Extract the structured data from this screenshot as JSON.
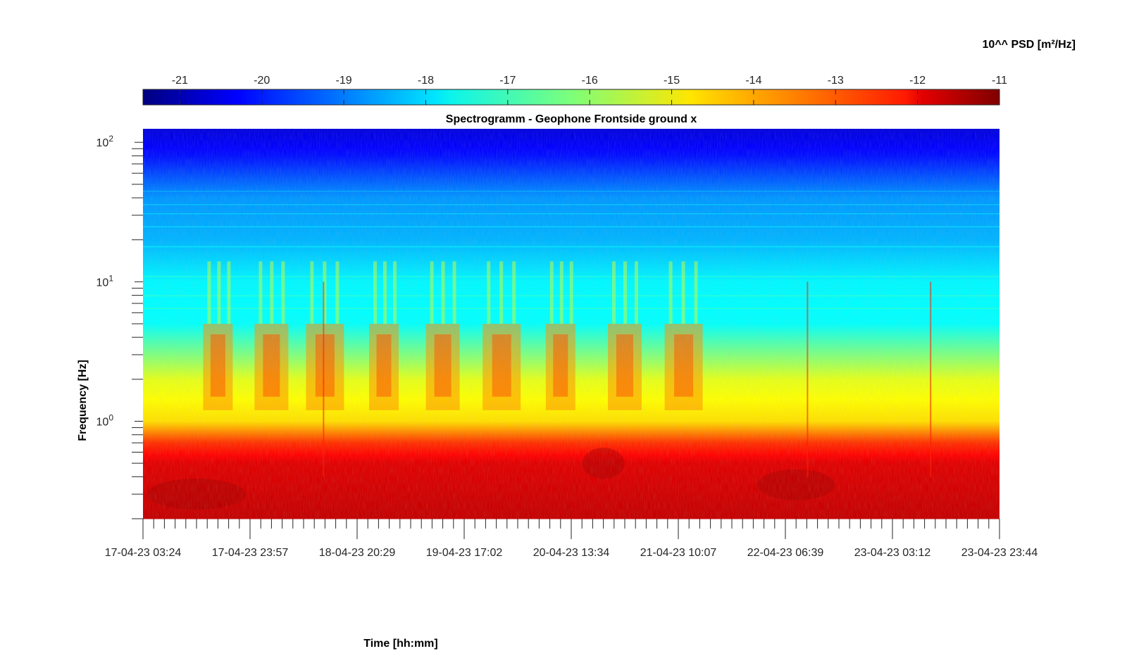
{
  "chart_data": {
    "type": "heatmap",
    "title": "Spectrogramm - Geophone Frontside ground x",
    "xlabel": "Time [hh:mm]",
    "ylabel": "Frequency [Hz]",
    "x_tick_labels": [
      "17-04-23 03:24",
      "17-04-23 23:57",
      "18-04-23 20:29",
      "19-04-23 17:02",
      "20-04-23 13:34",
      "21-04-23 10:07",
      "22-04-23 06:39",
      "23-04-23 03:12",
      "23-04-23 23:44"
    ],
    "y_scale": "log",
    "ylim": [
      0.2,
      125
    ],
    "y_tick_labels": [
      {
        "base": "10",
        "exp": "0",
        "value": 1
      },
      {
        "base": "10",
        "exp": "1",
        "value": 10
      },
      {
        "base": "10",
        "exp": "2",
        "value": 100
      }
    ],
    "colorbar": {
      "label": "10^^ PSD [m²/Hz]",
      "location": "top",
      "range": [
        -21.45,
        -11
      ],
      "ticks": [
        "-21",
        "-20",
        "-19",
        "-18",
        "-17",
        "-16",
        "-15",
        "-14",
        "-13",
        "-12",
        "-11"
      ],
      "colormap": "jet"
    },
    "background_psd_profile": [
      {
        "freq_hz": 0.2,
        "log10_psd": -11.7
      },
      {
        "freq_hz": 0.5,
        "log10_psd": -12.0
      },
      {
        "freq_hz": 0.7,
        "log10_psd": -12.8
      },
      {
        "freq_hz": 1.0,
        "log10_psd": -14.6
      },
      {
        "freq_hz": 2.0,
        "log10_psd": -15.2
      },
      {
        "freq_hz": 5.0,
        "log10_psd": -17.5
      },
      {
        "freq_hz": 10,
        "log10_psd": -17.6
      },
      {
        "freq_hz": 20,
        "log10_psd": -18.3
      },
      {
        "freq_hz": 40,
        "log10_psd": -18.6
      },
      {
        "freq_hz": 80,
        "log10_psd": -20.0
      },
      {
        "freq_hz": 125,
        "log10_psd": -20.5
      }
    ],
    "activity_bursts_x_index": [
      0.7,
      1.2,
      1.7,
      2.25,
      2.8,
      3.35,
      3.9,
      4.5,
      5.05
    ],
    "x_tick_count_labeled": 9,
    "minor_ticks_between": 9
  }
}
